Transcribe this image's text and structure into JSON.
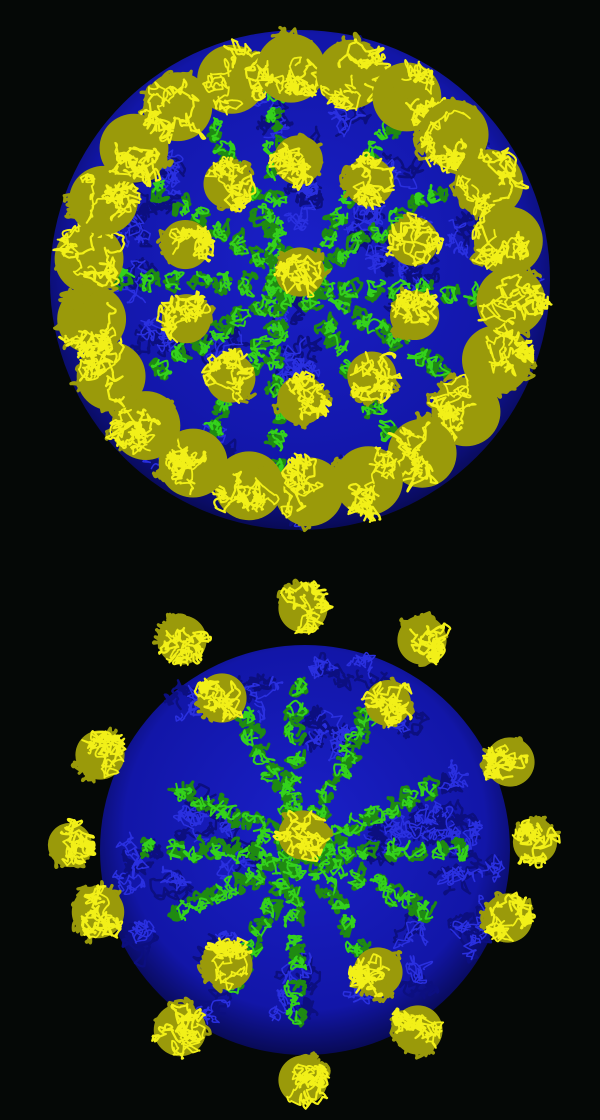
{
  "palette": {
    "background": "#050806",
    "shell": "#1418b8",
    "shell_dark": "#0a0c6a",
    "scaffold": "#34d21c",
    "scaffold_dark": "#1f8a12",
    "spike": "#f2f018",
    "spike_dark": "#9a9a0a"
  },
  "particles": [
    {
      "name": "top-capsid-view",
      "variant": "dense-spikes"
    },
    {
      "name": "bottom-capsid-view",
      "variant": "sparse-spikes"
    }
  ]
}
